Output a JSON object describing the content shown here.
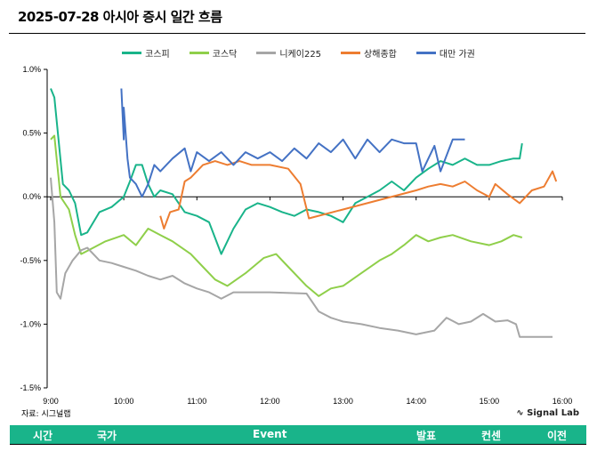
{
  "title": "2025-07-28 아시아 증시 일간 흐름",
  "source": "자료: 시그널랩",
  "brand": "Signal Lab",
  "table_header": [
    "시간",
    "국가",
    "Event",
    "발표",
    "컨센",
    "이전"
  ],
  "header_color": "#19b48a",
  "chart_data": {
    "type": "line",
    "title": "",
    "xlabel": "",
    "ylabel": "",
    "x_ticks": [
      "9:00",
      "10:00",
      "11:00",
      "12:00",
      "13:00",
      "14:00",
      "15:00",
      "16:00"
    ],
    "y_ticks": [
      "1.0%",
      "0.5%",
      "0.0%",
      "-0.5%",
      "-1.0%",
      "-1.5%"
    ],
    "xlim": [
      "9:00",
      "16:00"
    ],
    "ylim": [
      -1.5,
      1.0
    ],
    "legend": "top",
    "grid": false,
    "series": [
      {
        "name": "코스피",
        "color": "#19b48a",
        "points": [
          [
            "9:00",
            0.85
          ],
          [
            "9:03",
            0.78
          ],
          [
            "9:10",
            0.1
          ],
          [
            "9:15",
            0.05
          ],
          [
            "9:20",
            -0.05
          ],
          [
            "9:25",
            -0.3
          ],
          [
            "9:30",
            -0.28
          ],
          [
            "9:40",
            -0.12
          ],
          [
            "9:50",
            -0.08
          ],
          [
            "10:00",
            0.0
          ],
          [
            "10:05",
            0.12
          ],
          [
            "10:10",
            0.25
          ],
          [
            "10:15",
            0.25
          ],
          [
            "10:20",
            0.1
          ],
          [
            "10:25",
            0.0
          ],
          [
            "10:30",
            0.05
          ],
          [
            "10:40",
            0.02
          ],
          [
            "10:50",
            -0.12
          ],
          [
            "11:00",
            -0.15
          ],
          [
            "11:10",
            -0.2
          ],
          [
            "11:20",
            -0.45
          ],
          [
            "11:30",
            -0.25
          ],
          [
            "11:40",
            -0.1
          ],
          [
            "11:50",
            -0.05
          ],
          [
            "12:00",
            -0.08
          ],
          [
            "12:10",
            -0.12
          ],
          [
            "12:20",
            -0.15
          ],
          [
            "12:30",
            -0.1
          ],
          [
            "12:40",
            -0.12
          ],
          [
            "12:50",
            -0.15
          ],
          [
            "13:00",
            -0.2
          ],
          [
            "13:10",
            -0.05
          ],
          [
            "13:20",
            0.0
          ],
          [
            "13:30",
            0.05
          ],
          [
            "13:40",
            0.12
          ],
          [
            "13:50",
            0.05
          ],
          [
            "14:00",
            0.15
          ],
          [
            "14:10",
            0.22
          ],
          [
            "14:20",
            0.28
          ],
          [
            "14:30",
            0.25
          ],
          [
            "14:40",
            0.3
          ],
          [
            "14:50",
            0.25
          ],
          [
            "15:00",
            0.25
          ],
          [
            "15:10",
            0.28
          ],
          [
            "15:20",
            0.3
          ],
          [
            "15:25",
            0.3
          ],
          [
            "15:27",
            0.42
          ]
        ]
      },
      {
        "name": "코스닥",
        "color": "#8fcf4a",
        "points": [
          [
            "9:00",
            0.45
          ],
          [
            "9:03",
            0.48
          ],
          [
            "9:08",
            0.0
          ],
          [
            "9:15",
            -0.1
          ],
          [
            "9:20",
            -0.3
          ],
          [
            "9:25",
            -0.45
          ],
          [
            "9:35",
            -0.4
          ],
          [
            "9:45",
            -0.35
          ],
          [
            "10:00",
            -0.3
          ],
          [
            "10:10",
            -0.38
          ],
          [
            "10:20",
            -0.25
          ],
          [
            "10:30",
            -0.3
          ],
          [
            "10:40",
            -0.35
          ],
          [
            "10:55",
            -0.45
          ],
          [
            "11:05",
            -0.55
          ],
          [
            "11:15",
            -0.65
          ],
          [
            "11:25",
            -0.7
          ],
          [
            "11:40",
            -0.6
          ],
          [
            "11:55",
            -0.48
          ],
          [
            "12:05",
            -0.45
          ],
          [
            "12:15",
            -0.55
          ],
          [
            "12:30",
            -0.7
          ],
          [
            "12:40",
            -0.78
          ],
          [
            "12:50",
            -0.72
          ],
          [
            "13:00",
            -0.7
          ],
          [
            "13:15",
            -0.6
          ],
          [
            "13:30",
            -0.5
          ],
          [
            "13:40",
            -0.45
          ],
          [
            "13:50",
            -0.38
          ],
          [
            "14:00",
            -0.3
          ],
          [
            "14:10",
            -0.35
          ],
          [
            "14:20",
            -0.32
          ],
          [
            "14:30",
            -0.3
          ],
          [
            "14:45",
            -0.35
          ],
          [
            "15:00",
            -0.38
          ],
          [
            "15:10",
            -0.35
          ],
          [
            "15:20",
            -0.3
          ],
          [
            "15:27",
            -0.32
          ]
        ]
      },
      {
        "name": "니케이225",
        "color": "#a6a6a6",
        "points": [
          [
            "9:00",
            0.15
          ],
          [
            "9:03",
            -0.2
          ],
          [
            "9:05",
            -0.75
          ],
          [
            "9:08",
            -0.8
          ],
          [
            "9:12",
            -0.6
          ],
          [
            "9:18",
            -0.5
          ],
          [
            "9:25",
            -0.42
          ],
          [
            "9:30",
            -0.4
          ],
          [
            "9:40",
            -0.5
          ],
          [
            "9:50",
            -0.52
          ],
          [
            "10:00",
            -0.55
          ],
          [
            "10:10",
            -0.58
          ],
          [
            "10:20",
            -0.62
          ],
          [
            "10:30",
            -0.65
          ],
          [
            "10:40",
            -0.62
          ],
          [
            "10:50",
            -0.68
          ],
          [
            "11:00",
            -0.72
          ],
          [
            "11:10",
            -0.75
          ],
          [
            "11:20",
            -0.8
          ],
          [
            "11:30",
            -0.75
          ],
          [
            "12:00",
            -0.75
          ],
          [
            "12:30",
            -0.76
          ],
          [
            "12:40",
            -0.9
          ],
          [
            "12:50",
            -0.95
          ],
          [
            "13:00",
            -0.98
          ],
          [
            "13:15",
            -1.0
          ],
          [
            "13:30",
            -1.03
          ],
          [
            "13:45",
            -1.05
          ],
          [
            "14:00",
            -1.08
          ],
          [
            "14:15",
            -1.05
          ],
          [
            "14:25",
            -0.95
          ],
          [
            "14:35",
            -1.0
          ],
          [
            "14:45",
            -0.98
          ],
          [
            "14:55",
            -0.92
          ],
          [
            "15:05",
            -0.98
          ],
          [
            "15:15",
            -0.97
          ],
          [
            "15:22",
            -1.0
          ],
          [
            "15:25",
            -1.1
          ],
          [
            "15:52",
            -1.1
          ]
        ]
      },
      {
        "name": "상해종합",
        "color": "#ed7d31",
        "points": [
          [
            "10:30",
            -0.15
          ],
          [
            "10:33",
            -0.25
          ],
          [
            "10:38",
            -0.12
          ],
          [
            "10:45",
            -0.1
          ],
          [
            "10:50",
            0.12
          ],
          [
            "10:55",
            0.15
          ],
          [
            "11:05",
            0.25
          ],
          [
            "11:15",
            0.28
          ],
          [
            "11:25",
            0.25
          ],
          [
            "11:35",
            0.28
          ],
          [
            "11:45",
            0.25
          ],
          [
            "12:00",
            0.25
          ],
          [
            "12:15",
            0.22
          ],
          [
            "12:25",
            0.1
          ],
          [
            "12:32",
            -0.17
          ],
          [
            "14:00",
            0.05
          ],
          [
            "14:10",
            0.08
          ],
          [
            "14:20",
            0.1
          ],
          [
            "14:30",
            0.08
          ],
          [
            "14:40",
            0.12
          ],
          [
            "14:50",
            0.05
          ],
          [
            "15:00",
            0.0
          ],
          [
            "15:05",
            0.1
          ],
          [
            "15:15",
            0.02
          ],
          [
            "15:25",
            -0.05
          ],
          [
            "15:35",
            0.05
          ],
          [
            "15:45",
            0.08
          ],
          [
            "15:52",
            0.2
          ],
          [
            "15:55",
            0.12
          ]
        ]
      },
      {
        "name": "대만 가권",
        "color": "#4472c4",
        "points": [
          [
            "9:58",
            0.85
          ],
          [
            "10:00",
            0.45
          ],
          [
            "10:00",
            0.7
          ],
          [
            "10:03",
            0.3
          ],
          [
            "10:05",
            0.15
          ],
          [
            "10:10",
            0.1
          ],
          [
            "10:15",
            0.0
          ],
          [
            "10:20",
            0.1
          ],
          [
            "10:25",
            0.25
          ],
          [
            "10:30",
            0.2
          ],
          [
            "10:40",
            0.3
          ],
          [
            "10:50",
            0.38
          ],
          [
            "10:55",
            0.2
          ],
          [
            "11:00",
            0.35
          ],
          [
            "11:10",
            0.28
          ],
          [
            "11:20",
            0.35
          ],
          [
            "11:30",
            0.25
          ],
          [
            "11:40",
            0.35
          ],
          [
            "11:50",
            0.3
          ],
          [
            "12:00",
            0.35
          ],
          [
            "12:10",
            0.28
          ],
          [
            "12:20",
            0.38
          ],
          [
            "12:30",
            0.3
          ],
          [
            "12:40",
            0.42
          ],
          [
            "12:50",
            0.35
          ],
          [
            "13:00",
            0.45
          ],
          [
            "13:10",
            0.3
          ],
          [
            "13:20",
            0.45
          ],
          [
            "13:30",
            0.35
          ],
          [
            "13:40",
            0.45
          ],
          [
            "13:50",
            0.42
          ],
          [
            "14:00",
            0.42
          ],
          [
            "14:05",
            0.2
          ],
          [
            "14:15",
            0.4
          ],
          [
            "14:20",
            0.2
          ],
          [
            "14:30",
            0.45
          ],
          [
            "14:40",
            0.45
          ]
        ]
      }
    ]
  }
}
